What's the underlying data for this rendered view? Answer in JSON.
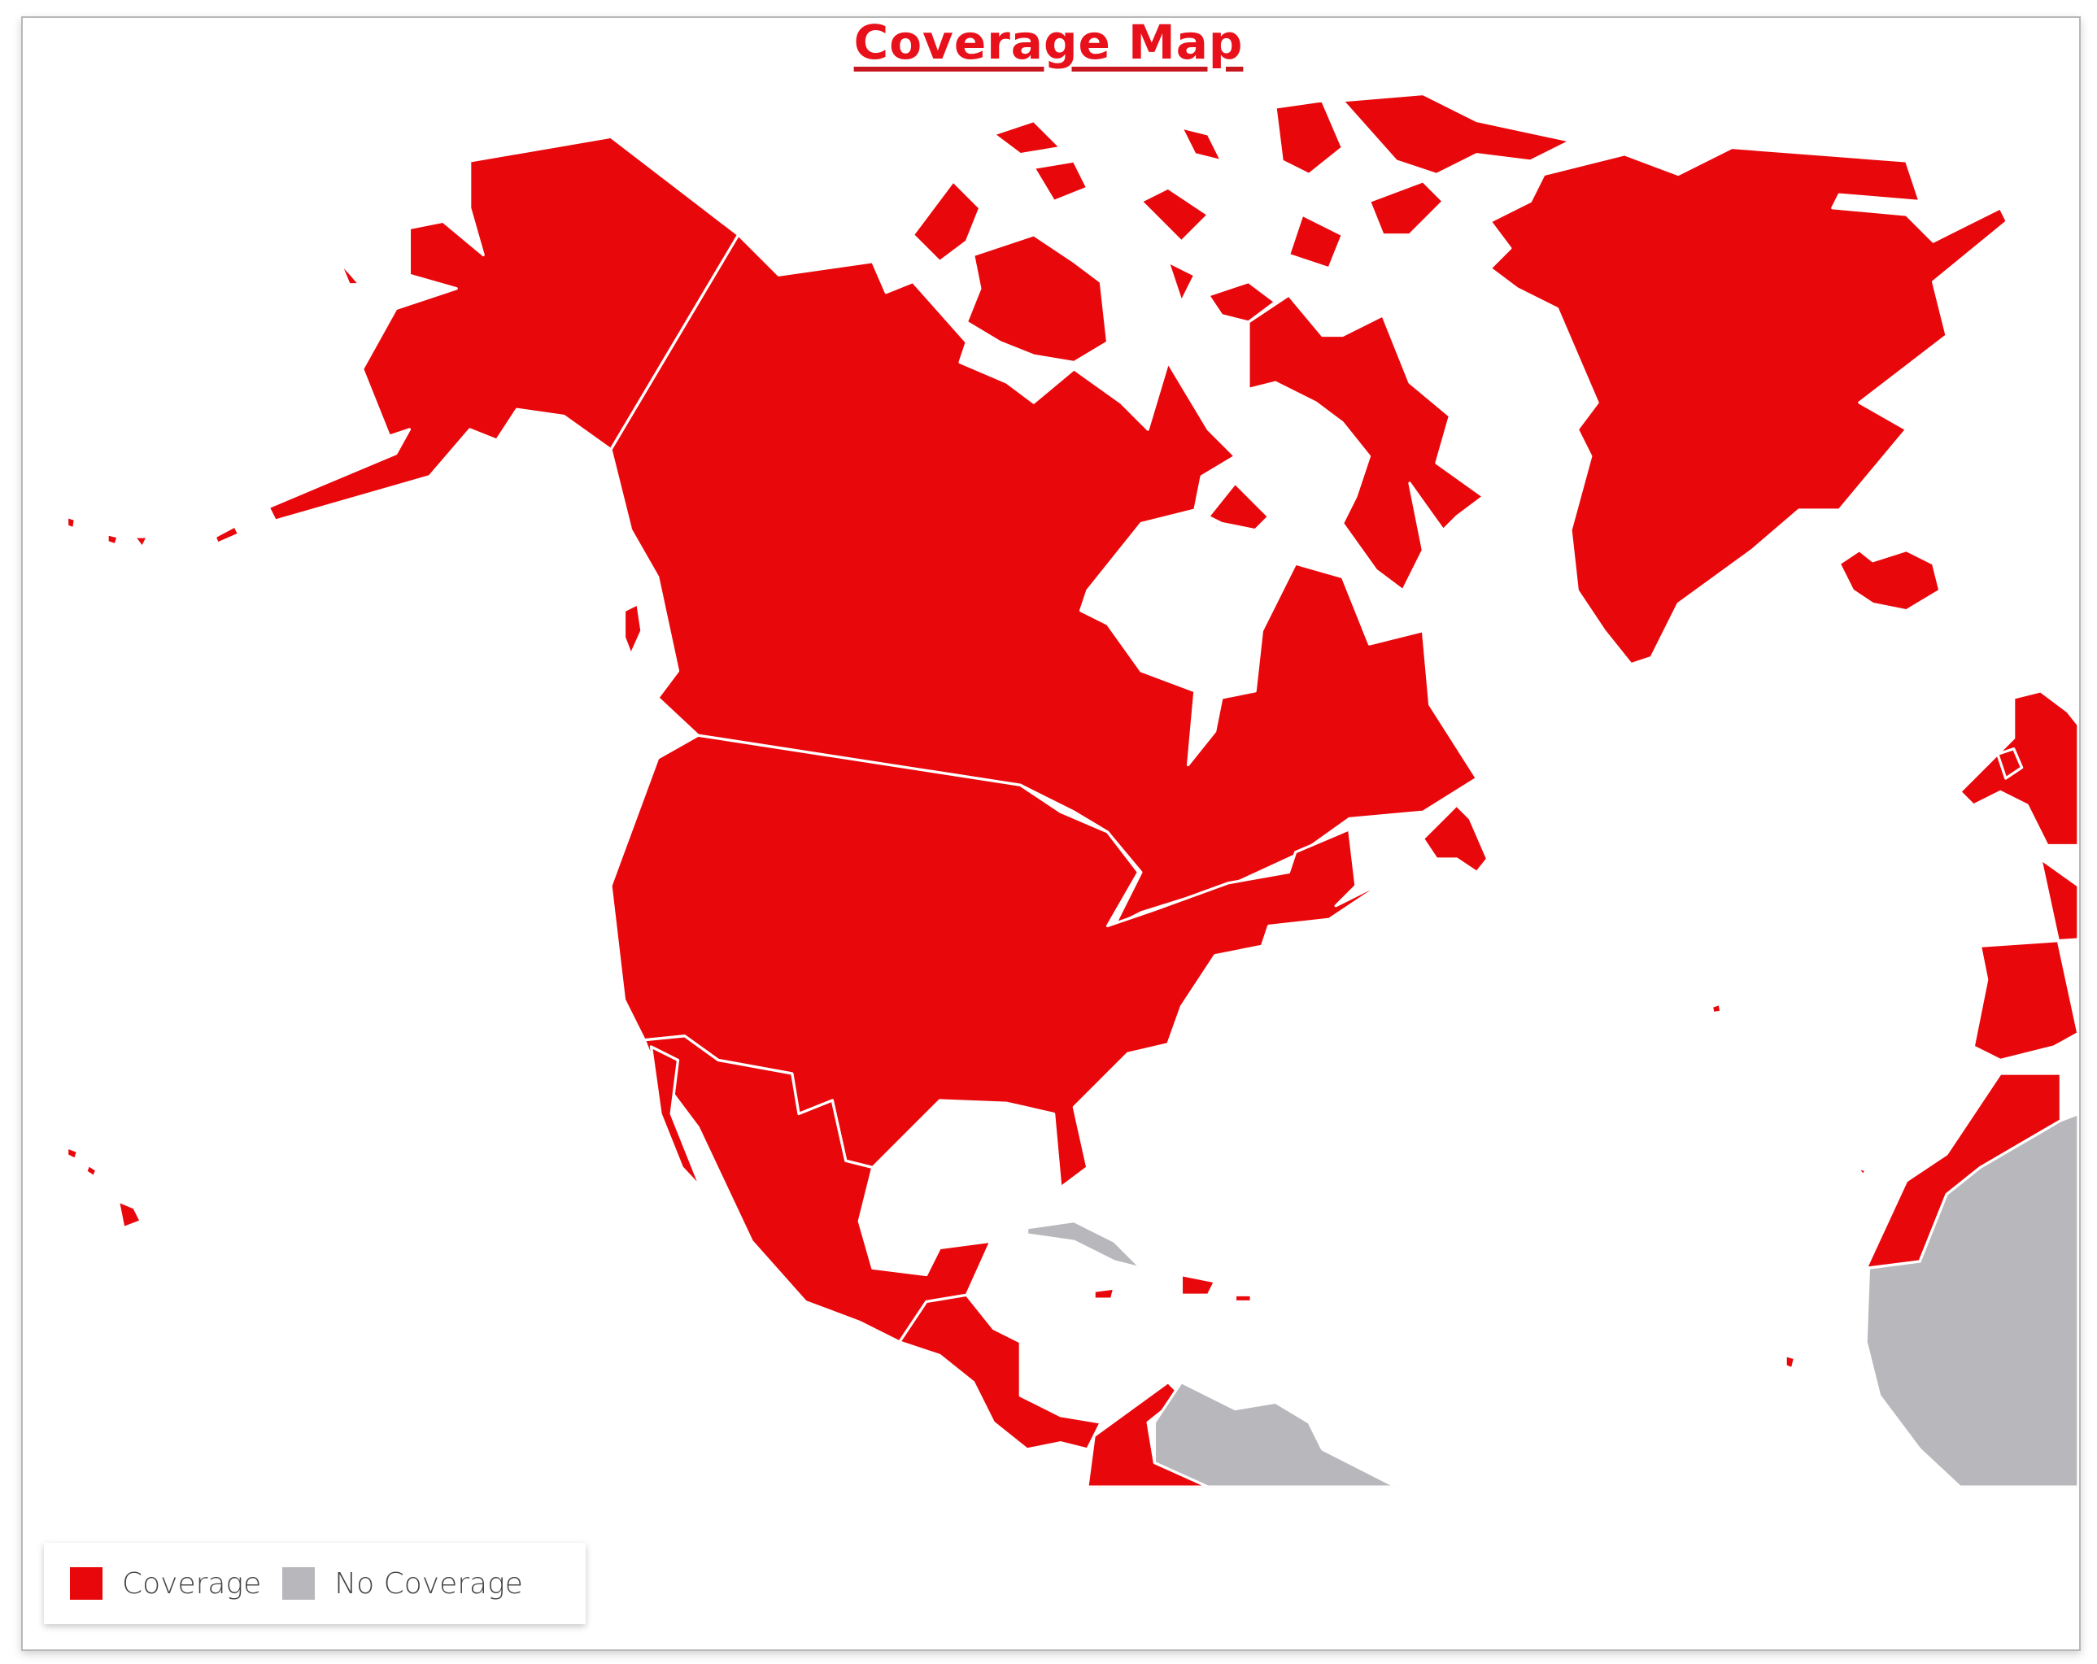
{
  "title": "Coverage Map",
  "legend": {
    "items": [
      {
        "label": "Coverage",
        "color": "#e8080c"
      },
      {
        "label": "No Coverage",
        "color": "#b8b8bc"
      }
    ]
  },
  "colors": {
    "coverage": "#e8080c",
    "no_coverage": "#b8b8bc",
    "border": "#ffffff",
    "ocean": "#ffffff"
  }
}
